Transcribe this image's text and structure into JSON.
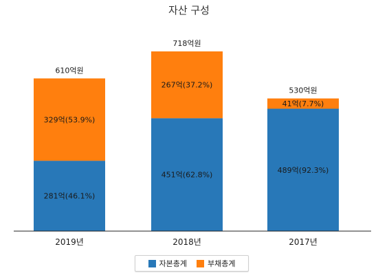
{
  "chart_data": {
    "type": "bar",
    "stacked": true,
    "title": "자산 구성",
    "categories": [
      "2019년",
      "2018년",
      "2017년"
    ],
    "totals": [
      610,
      718,
      530
    ],
    "total_labels": [
      "610억원",
      "718억원",
      "530억원"
    ],
    "series": [
      {
        "name": "자본총계",
        "color": "#2878b8",
        "values": [
          281,
          451,
          489
        ],
        "labels": [
          "281억(46.1%)",
          "451억(62.8%)",
          "489억(92.3%)"
        ]
      },
      {
        "name": "부채총계",
        "color": "#ff7f0e",
        "values": [
          329,
          267,
          41
        ],
        "labels": [
          "329억(53.9%)",
          "267억(37.2%)",
          "41억(7.7%)"
        ]
      }
    ],
    "ylim": [
      0,
      800
    ],
    "grid": false,
    "legend_position": "bottom"
  }
}
